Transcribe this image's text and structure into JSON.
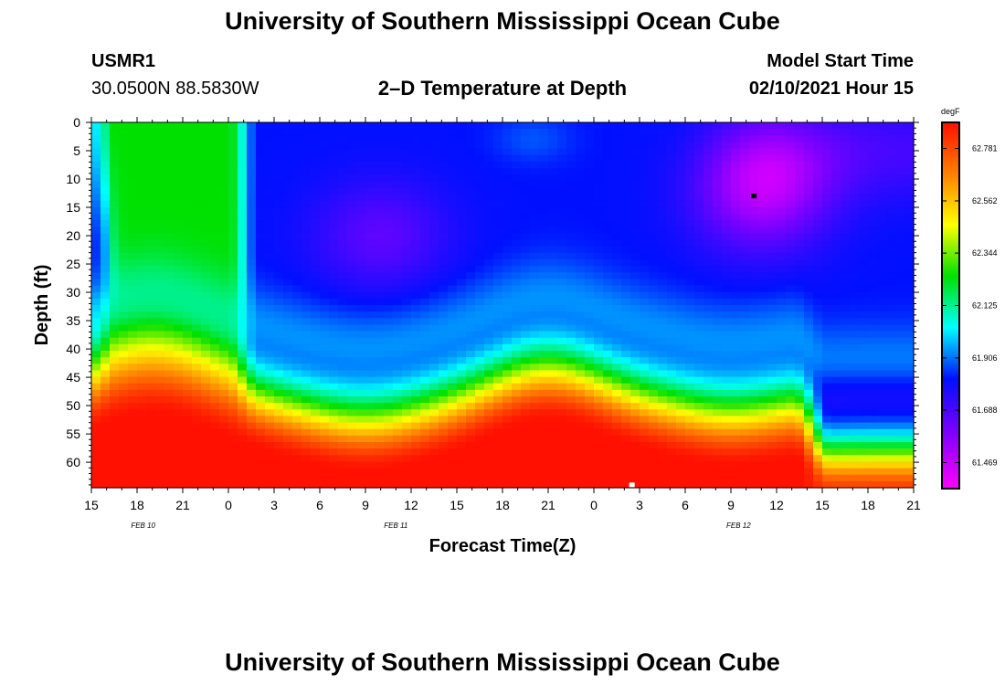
{
  "page": {
    "title_top": "University of Southern Mississippi Ocean Cube",
    "title_bottom": "University of Southern Mississippi Ocean Cube",
    "station_id": "USMR1",
    "location": "30.0500N 88.5830W",
    "plot_title": "2–D Temperature at Depth",
    "model_start_label": "Model Start Time",
    "model_start_value": "02/10/2021 Hour 15"
  },
  "chart_data": {
    "type": "heatmap",
    "title": "2–D Temperature at Depth",
    "xlabel": "Forecast Time(Z)",
    "ylabel": "Depth (ft)",
    "x_tick_labels": [
      "15",
      "18",
      "21",
      "0",
      "3",
      "6",
      "9",
      "12",
      "15",
      "18",
      "21",
      "0",
      "3",
      "6",
      "9",
      "12",
      "15",
      "18",
      "21"
    ],
    "x_range_hours": [
      0,
      54
    ],
    "date_labels": [
      {
        "text": "FEB 10",
        "hour": 3.4
      },
      {
        "text": "FEB 11",
        "hour": 20.0
      },
      {
        "text": "FEB 12",
        "hour": 42.5
      }
    ],
    "y_tick_labels": [
      "0",
      "5",
      "10",
      "15",
      "20",
      "25",
      "30",
      "35",
      "40",
      "45",
      "50",
      "55",
      "60"
    ],
    "y_ticks": [
      0,
      5,
      10,
      15,
      20,
      25,
      30,
      35,
      40,
      45,
      50,
      55,
      60
    ],
    "ylim": [
      0,
      64.5
    ],
    "colorbar": {
      "unit": "degF",
      "labels": [
        "62.781",
        "62.562",
        "62.344",
        "62.125",
        "61.906",
        "61.688",
        "61.469"
      ],
      "min": 61.36,
      "max": 62.89
    },
    "markers": [
      {
        "name": "black-marker",
        "hour": 43.5,
        "depth": 13,
        "color": "#000000"
      },
      {
        "name": "white-marker",
        "hour": 35.5,
        "depth": 64,
        "color": "#ffffff"
      }
    ]
  }
}
